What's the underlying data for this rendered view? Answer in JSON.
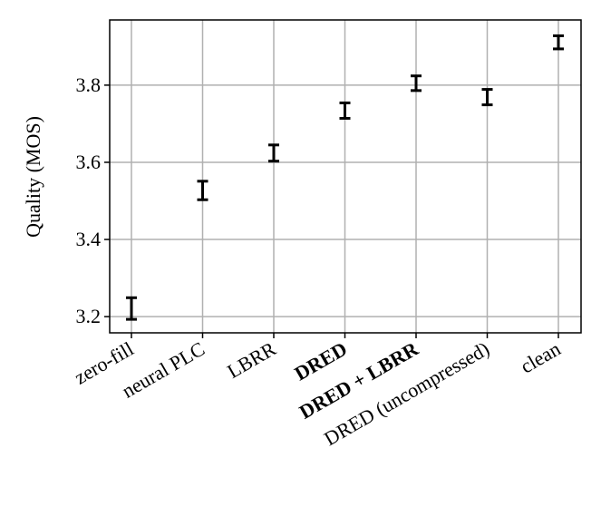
{
  "chart_data": {
    "type": "errorbar",
    "y_label": "Quality (MOS)",
    "categories": [
      "zero-fill",
      "neural PLC",
      "LBRR",
      "DRED",
      "DRED + LBRR",
      "DRED (uncompressed)",
      "clean"
    ],
    "values": [
      3.221,
      3.527,
      3.624,
      3.734,
      3.805,
      3.769,
      3.911
    ],
    "errors": [
      0.028,
      0.024,
      0.021,
      0.02,
      0.019,
      0.02,
      0.017
    ],
    "color": "#000000",
    "ylim": [
      3.158,
      3.969
    ],
    "yticks": [
      {
        "value": 3.2,
        "label": "3.2"
      },
      {
        "value": 3.4,
        "label": "3.4"
      },
      {
        "value": 3.6,
        "label": "3.6"
      },
      {
        "value": 3.8,
        "label": "3.8"
      }
    ],
    "grid": true
  }
}
